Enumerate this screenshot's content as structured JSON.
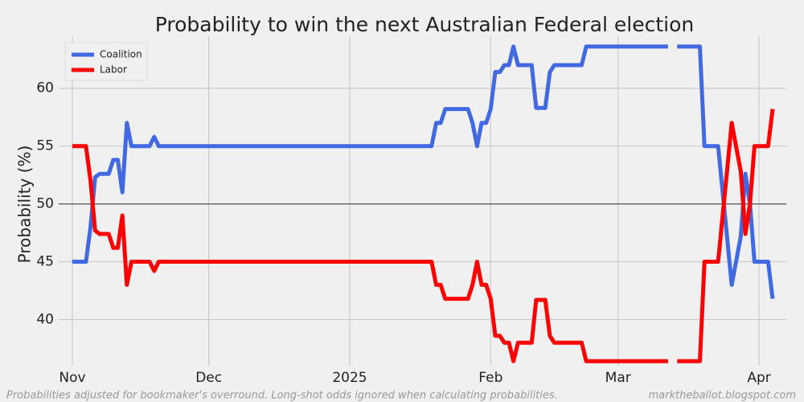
{
  "chart_data": {
    "type": "line",
    "title": "Probability to win the next Australian Federal election",
    "y_label": "Probability (%)",
    "footnote": "Probabilities adjusted for bookmaker's overround. Long-shot odds ignored when calculating probabilities.",
    "source": "marktheballot.blogspot.com",
    "x": [
      "2024-11-01",
      "2024-11-04",
      "2024-11-05",
      "2024-11-06",
      "2024-11-07",
      "2024-11-09",
      "2024-11-10",
      "2024-11-11",
      "2024-11-12",
      "2024-11-13",
      "2024-11-14",
      "2024-11-18",
      "2024-11-19",
      "2024-11-20",
      "2025-01-19",
      "2025-01-20",
      "2025-01-21",
      "2025-01-22",
      "2025-01-27",
      "2025-01-28",
      "2025-01-29",
      "2025-01-30",
      "2025-01-31",
      "2025-02-01",
      "2025-02-02",
      "2025-02-03",
      "2025-02-04",
      "2025-02-05",
      "2025-02-06",
      "2025-02-07",
      "2025-02-10",
      "2025-02-11",
      "2025-02-13",
      "2025-02-14",
      "2025-02-15",
      "2025-02-21",
      "2025-02-22",
      "2025-03-12",
      "2025-03-13",
      "2025-03-14",
      "2025-03-19",
      "2025-03-20",
      "2025-03-23",
      "2025-03-25",
      "2025-03-26",
      "2025-03-28",
      "2025-03-29",
      "2025-03-30",
      "2025-03-31",
      "2025-04-03",
      "2025-04-04"
    ],
    "series": [
      {
        "name": "Coalition",
        "color": "#4169e1",
        "values": [
          45,
          45,
          48,
          52.3,
          52.6,
          52.6,
          53.8,
          53.8,
          51,
          57,
          55,
          55,
          55.8,
          55,
          55,
          57,
          57,
          58.2,
          58.2,
          57,
          55,
          57,
          57,
          58.2,
          61.4,
          61.4,
          62,
          62,
          63.6,
          62,
          62,
          58.3,
          58.3,
          61.4,
          62,
          62,
          63.6,
          63.6,
          null,
          63.6,
          63.6,
          55,
          55,
          47,
          43,
          47.2,
          52.6,
          50,
          45,
          45,
          41.8
        ]
      },
      {
        "name": "Labor",
        "color": "#ff0000",
        "values": [
          55,
          55,
          52,
          47.7,
          47.4,
          47.4,
          46.2,
          46.2,
          49,
          43,
          45,
          45,
          44.2,
          45,
          45,
          43,
          43,
          41.8,
          41.8,
          43,
          45,
          43,
          43,
          41.8,
          38.6,
          38.6,
          38,
          38,
          36.4,
          38,
          38,
          41.7,
          41.7,
          38.6,
          38,
          38,
          36.4,
          36.4,
          null,
          36.4,
          36.4,
          45,
          45,
          53,
          57,
          52.8,
          47.4,
          50,
          55,
          55,
          58.2
        ]
      }
    ],
    "xlim": [
      "2024-10-29",
      "2025-04-07"
    ],
    "xticks": [
      {
        "value": "2024-11-01",
        "label": "Nov"
      },
      {
        "value": "2024-12-01",
        "label": "Dec"
      },
      {
        "value": "2025-01-01",
        "label": "2025"
      },
      {
        "value": "2025-02-01",
        "label": "Feb"
      },
      {
        "value": "2025-03-01",
        "label": "Mar"
      },
      {
        "value": "2025-04-01",
        "label": "Apr"
      }
    ],
    "ylim": [
      36,
      64.5
    ],
    "yticks": [
      40,
      45,
      50,
      55,
      60
    ],
    "reference_line": 50,
    "grid": true,
    "legend": "upper left"
  }
}
